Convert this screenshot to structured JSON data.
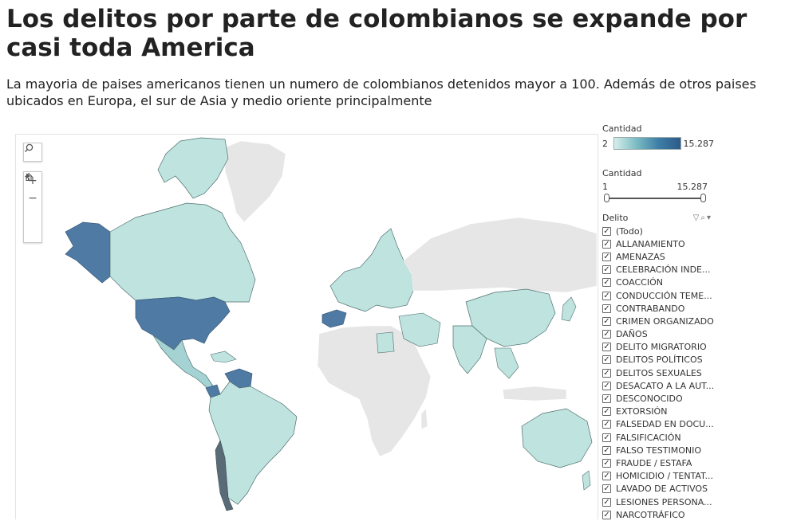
{
  "header": {
    "title": "Los delitos por parte de colombianos se expande por casi toda America",
    "subtitle": "La mayoria de paises americanos tienen un numero de colombianos detenidos mayor a 100. Además de otros paises ubicados en Europa, el sur de Asia y medio oriente principalmente"
  },
  "map": {
    "tools": {
      "search_icon": "search-icon",
      "zoom_in": "+",
      "zoom_out": "−",
      "home_icon": "home-icon",
      "expand_icon": "play-icon"
    },
    "colors": {
      "no_data": "#e6e6e6",
      "low": "#bfe3df",
      "mid": "#a5d3d3",
      "high": "#4f7aa3",
      "border": "#4f6f6f"
    }
  },
  "legend": {
    "color_label": "Cantidad",
    "color_min": "2",
    "color_max": "15.287",
    "range_label": "Cantidad",
    "range_min": "1",
    "range_max": "15.287"
  },
  "filter": {
    "label": "Delito",
    "items": [
      "(Todo)",
      "ALLANAMIENTO",
      "AMENAZAS",
      "CELEBRACIÓN INDE...",
      "COACCIÓN",
      "CONDUCCIÓN TEME...",
      "CONTRABANDO",
      "CRIMEN ORGANIZADO",
      "DAÑOS",
      "DELITO MIGRATORIO",
      "DELITOS POLÍTICOS",
      "DELITOS SEXUALES",
      "DESACATO A LA AUT...",
      "DESCONOCIDO",
      "EXTORSIÓN",
      "FALSEDAD EN DOCU...",
      "FALSIFICACIÓN",
      "FALSO TESTIMONIO",
      "FRAUDE / ESTAFA",
      "HOMICIDIO / TENTAT...",
      "LAVADO DE ACTIVOS",
      "LESIONES PERSONA...",
      "NARCOTRÁFICO"
    ]
  }
}
